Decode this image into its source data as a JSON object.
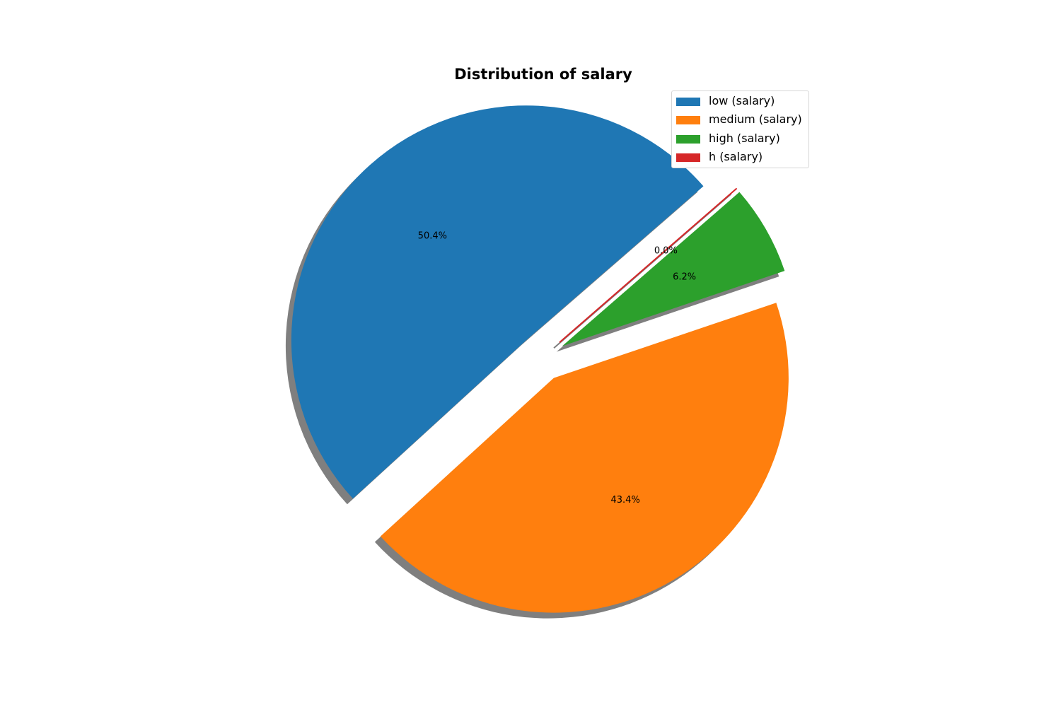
{
  "chart_data": {
    "type": "pie",
    "title": "Distribution of salary",
    "categories": [
      "low (salary)",
      "medium (salary)",
      "high (salary)",
      "h (salary)"
    ],
    "values": [
      50.4,
      43.4,
      6.2,
      0.0
    ],
    "labels": [
      "50.4%",
      "43.4%",
      "6.2%",
      "0.0%"
    ],
    "colors": [
      "#1f77b4",
      "#ff7f0e",
      "#2ca02c",
      "#d62728"
    ],
    "exploded": [
      true,
      true,
      true,
      true
    ],
    "shadow": true,
    "legend_position": "top-right",
    "start_angle_deg": 41
  }
}
